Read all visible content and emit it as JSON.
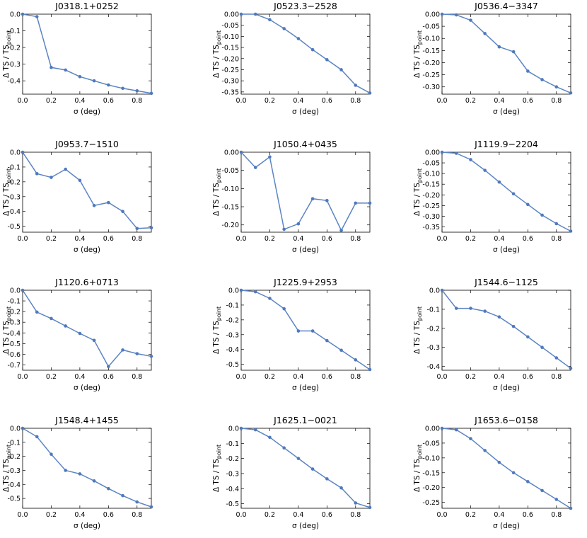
{
  "figure": {
    "xlabel": "σ (deg)",
    "ylabel_main": "Δ TS / TS",
    "ylabel_sub": "point"
  },
  "chart_data": [
    {
      "type": "line",
      "title": "J0318.1+0252",
      "x": [
        0,
        0.1,
        0.2,
        0.3,
        0.4,
        0.5,
        0.6,
        0.7,
        0.8,
        0.9
      ],
      "values": [
        0.0,
        -0.015,
        -0.32,
        -0.335,
        -0.375,
        -0.4,
        -0.425,
        -0.445,
        -0.46,
        -0.475
      ],
      "xlabel": "σ (deg)",
      "ylabel": "Δ TS / TS_point",
      "xlim": [
        0,
        0.9
      ],
      "ylim": [
        -0.48,
        0.0
      ],
      "xticks": [
        "0.0",
        "0.2",
        "0.4",
        "0.6",
        "0.8"
      ],
      "yticks": [
        0.0,
        -0.1,
        -0.2,
        -0.3,
        -0.4
      ],
      "ytick_labels": [
        "0.0",
        "-0.1",
        "-0.2",
        "-0.3",
        "-0.4"
      ]
    },
    {
      "type": "line",
      "title": "J0523.3−2528",
      "x": [
        0,
        0.1,
        0.2,
        0.3,
        0.4,
        0.5,
        0.6,
        0.7,
        0.8,
        0.9
      ],
      "values": [
        0.0,
        0.0,
        -0.025,
        -0.065,
        -0.11,
        -0.16,
        -0.205,
        -0.25,
        -0.32,
        -0.355
      ],
      "xlabel": "σ (deg)",
      "ylabel": "Δ TS / TS_point",
      "xlim": [
        0,
        0.9
      ],
      "ylim": [
        -0.36,
        0.0
      ],
      "xticks": [
        "0.0",
        "0.2",
        "0.4",
        "0.6",
        "0.8"
      ],
      "yticks": [
        0.0,
        -0.05,
        -0.1,
        -0.15,
        -0.2,
        -0.25,
        -0.3,
        -0.35
      ],
      "ytick_labels": [
        "0.00",
        "-0.05",
        "-0.10",
        "-0.15",
        "-0.20",
        "-0.25",
        "-0.30",
        "-0.35"
      ]
    },
    {
      "type": "line",
      "title": "J0536.4−3347",
      "x": [
        0,
        0.1,
        0.2,
        0.3,
        0.4,
        0.5,
        0.6,
        0.7,
        0.8,
        0.9
      ],
      "values": [
        0.0,
        -0.003,
        -0.025,
        -0.08,
        -0.135,
        -0.155,
        -0.235,
        -0.27,
        -0.3,
        -0.325
      ],
      "xlabel": "σ (deg)",
      "ylabel": "Δ TS / TS_point",
      "xlim": [
        0,
        0.9
      ],
      "ylim": [
        -0.33,
        0.0
      ],
      "xticks": [
        "0.0",
        "0.2",
        "0.4",
        "0.6",
        "0.8"
      ],
      "yticks": [
        0.0,
        -0.05,
        -0.1,
        -0.15,
        -0.2,
        -0.25,
        -0.3
      ],
      "ytick_labels": [
        "0.00",
        "-0.05",
        "-0.10",
        "-0.15",
        "-0.20",
        "-0.25",
        "-0.30"
      ]
    },
    {
      "type": "line",
      "title": "J0953.7−1510",
      "x": [
        0,
        0.1,
        0.2,
        0.3,
        0.4,
        0.5,
        0.6,
        0.7,
        0.8,
        0.9
      ],
      "values": [
        0.0,
        -0.145,
        -0.17,
        -0.115,
        -0.19,
        -0.36,
        -0.34,
        -0.4,
        -0.515,
        -0.51
      ],
      "xlabel": "σ (deg)",
      "ylabel": "Δ TS / TS_point",
      "xlim": [
        0,
        0.9
      ],
      "ylim": [
        -0.54,
        0.0
      ],
      "xticks": [
        "0.0",
        "0.2",
        "0.4",
        "0.6",
        "0.8"
      ],
      "yticks": [
        0.0,
        -0.1,
        -0.2,
        -0.3,
        -0.4,
        -0.5
      ],
      "ytick_labels": [
        "0.0",
        "-0.1",
        "-0.2",
        "-0.3",
        "-0.4",
        "-0.5"
      ]
    },
    {
      "type": "line",
      "title": "J1050.4+0435",
      "x": [
        0,
        0.1,
        0.2,
        0.3,
        0.4,
        0.5,
        0.6,
        0.7,
        0.8,
        0.9
      ],
      "values": [
        0.0,
        -0.042,
        -0.013,
        -0.212,
        -0.197,
        -0.128,
        -0.133,
        -0.215,
        -0.14,
        -0.14
      ],
      "xlabel": "σ (deg)",
      "ylabel": "Δ TS / TS_point",
      "xlim": [
        0,
        0.9
      ],
      "ylim": [
        -0.22,
        0.0
      ],
      "xticks": [
        "0.0",
        "0.2",
        "0.4",
        "0.6",
        "0.8"
      ],
      "yticks": [
        0.0,
        -0.05,
        -0.1,
        -0.15,
        -0.2
      ],
      "ytick_labels": [
        "0.00",
        "-0.05",
        "-0.10",
        "-0.15",
        "-0.20"
      ]
    },
    {
      "type": "line",
      "title": "J1119.9−2204",
      "x": [
        0,
        0.1,
        0.2,
        0.3,
        0.4,
        0.5,
        0.6,
        0.7,
        0.8,
        0.9
      ],
      "values": [
        0.0,
        -0.005,
        -0.035,
        -0.085,
        -0.14,
        -0.195,
        -0.245,
        -0.295,
        -0.335,
        -0.37
      ],
      "xlabel": "σ (deg)",
      "ylabel": "Δ TS / TS_point",
      "xlim": [
        0,
        0.9
      ],
      "ylim": [
        -0.375,
        0.0
      ],
      "xticks": [
        "0.0",
        "0.2",
        "0.4",
        "0.6",
        "0.8"
      ],
      "yticks": [
        0.0,
        -0.05,
        -0.1,
        -0.15,
        -0.2,
        -0.25,
        -0.3,
        -0.35
      ],
      "ytick_labels": [
        "0.00",
        "-0.05",
        "-0.10",
        "-0.15",
        "-0.20",
        "-0.25",
        "-0.30",
        "-0.35"
      ]
    },
    {
      "type": "line",
      "title": "J1120.6+0713",
      "x": [
        0,
        0.1,
        0.2,
        0.3,
        0.4,
        0.5,
        0.6,
        0.7,
        0.8,
        0.9
      ],
      "values": [
        0.0,
        -0.205,
        -0.265,
        -0.335,
        -0.405,
        -0.47,
        -0.715,
        -0.56,
        -0.595,
        -0.62
      ],
      "xlabel": "σ (deg)",
      "ylabel": "Δ TS / TS_point",
      "xlim": [
        0,
        0.9
      ],
      "ylim": [
        -0.75,
        0.0
      ],
      "xticks": [
        "0.0",
        "0.2",
        "0.4",
        "0.6",
        "0.8"
      ],
      "yticks": [
        0.0,
        -0.1,
        -0.2,
        -0.3,
        -0.4,
        -0.5,
        -0.6,
        -0.7
      ],
      "ytick_labels": [
        "0.0",
        "-0.1",
        "-0.2",
        "-0.3",
        "-0.4",
        "-0.5",
        "-0.6",
        "-0.7"
      ]
    },
    {
      "type": "line",
      "title": "J1225.9+2953",
      "x": [
        0,
        0.1,
        0.2,
        0.3,
        0.4,
        0.5,
        0.6,
        0.7,
        0.8,
        0.9
      ],
      "values": [
        0.0,
        -0.01,
        -0.055,
        -0.125,
        -0.275,
        -0.275,
        -0.34,
        -0.405,
        -0.47,
        -0.535
      ],
      "xlabel": "σ (deg)",
      "ylabel": "Δ TS / TS_point",
      "xlim": [
        0,
        0.9
      ],
      "ylim": [
        -0.54,
        0.0
      ],
      "xticks": [
        "0.0",
        "0.2",
        "0.4",
        "0.6",
        "0.8"
      ],
      "yticks": [
        0.0,
        -0.1,
        -0.2,
        -0.3,
        -0.4,
        -0.5
      ],
      "ytick_labels": [
        "0.0",
        "-0.1",
        "-0.2",
        "-0.3",
        "-0.4",
        "-0.5"
      ]
    },
    {
      "type": "line",
      "title": "J1544.6−1125",
      "x": [
        0,
        0.1,
        0.2,
        0.3,
        0.4,
        0.5,
        0.6,
        0.7,
        0.8,
        0.9
      ],
      "values": [
        0.0,
        -0.095,
        -0.095,
        -0.11,
        -0.14,
        -0.19,
        -0.245,
        -0.3,
        -0.355,
        -0.41
      ],
      "xlabel": "σ (deg)",
      "ylabel": "Δ TS / TS_point",
      "xlim": [
        0,
        0.9
      ],
      "ylim": [
        -0.42,
        0.0
      ],
      "xticks": [
        "0.0",
        "0.2",
        "0.4",
        "0.6",
        "0.8"
      ],
      "yticks": [
        0.0,
        -0.1,
        -0.2,
        -0.3,
        -0.4
      ],
      "ytick_labels": [
        "0.0",
        "-0.1",
        "-0.2",
        "-0.3",
        "-0.4"
      ]
    },
    {
      "type": "line",
      "title": "J1548.4+1455",
      "x": [
        0,
        0.1,
        0.2,
        0.3,
        0.4,
        0.5,
        0.6,
        0.7,
        0.8,
        0.9
      ],
      "values": [
        0.0,
        -0.06,
        -0.185,
        -0.3,
        -0.325,
        -0.375,
        -0.43,
        -0.48,
        -0.525,
        -0.56
      ],
      "xlabel": "σ (deg)",
      "ylabel": "Δ TS / TS_point",
      "xlim": [
        0,
        0.9
      ],
      "ylim": [
        -0.57,
        0.0
      ],
      "xticks": [
        "0.0",
        "0.2",
        "0.4",
        "0.6",
        "0.8"
      ],
      "yticks": [
        0.0,
        -0.1,
        -0.2,
        -0.3,
        -0.4,
        -0.5
      ],
      "ytick_labels": [
        "0.0",
        "-0.1",
        "-0.2",
        "-0.3",
        "-0.4",
        "-0.5"
      ]
    },
    {
      "type": "line",
      "title": "J1625.1−0021",
      "x": [
        0,
        0.1,
        0.2,
        0.3,
        0.4,
        0.5,
        0.6,
        0.7,
        0.8,
        0.9
      ],
      "values": [
        0.0,
        -0.01,
        -0.06,
        -0.13,
        -0.2,
        -0.27,
        -0.335,
        -0.395,
        -0.495,
        -0.525
      ],
      "xlabel": "σ (deg)",
      "ylabel": "Δ TS / TS_point",
      "xlim": [
        0,
        0.9
      ],
      "ylim": [
        -0.53,
        0.0
      ],
      "xticks": [
        "0.0",
        "0.2",
        "0.4",
        "0.6",
        "0.8"
      ],
      "yticks": [
        0.0,
        -0.1,
        -0.2,
        -0.3,
        -0.4,
        -0.5
      ],
      "ytick_labels": [
        "0.0",
        "-0.1",
        "-0.2",
        "-0.3",
        "-0.4",
        "-0.5"
      ]
    },
    {
      "type": "line",
      "title": "J1653.6−0158",
      "x": [
        0,
        0.1,
        0.2,
        0.3,
        0.4,
        0.5,
        0.6,
        0.7,
        0.8,
        0.9
      ],
      "values": [
        0.0,
        -0.005,
        -0.035,
        -0.075,
        -0.115,
        -0.15,
        -0.18,
        -0.21,
        -0.24,
        -0.27
      ],
      "xlabel": "σ (deg)",
      "ylabel": "Δ TS / TS_point",
      "xlim": [
        0,
        0.9
      ],
      "ylim": [
        -0.27,
        0.0
      ],
      "xticks": [
        "0.0",
        "0.2",
        "0.4",
        "0.6",
        "0.8"
      ],
      "yticks": [
        0.0,
        -0.05,
        -0.1,
        -0.15,
        -0.2,
        -0.25
      ],
      "ytick_labels": [
        "0.00",
        "-0.05",
        "-0.10",
        "-0.15",
        "-0.20",
        "-0.25"
      ]
    }
  ]
}
